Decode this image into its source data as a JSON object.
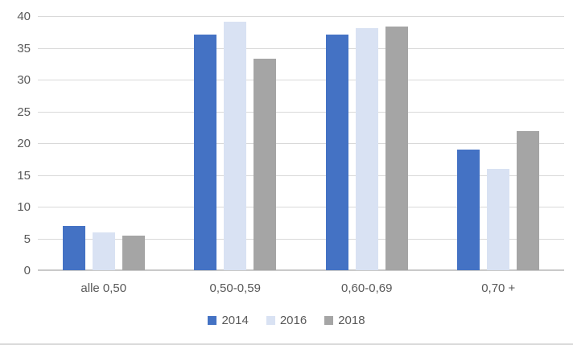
{
  "chart_data": {
    "type": "bar",
    "title": "",
    "categories": [
      "alle 0,50",
      "0,50-0,59",
      "0,60-0,69",
      "0,70 +"
    ],
    "series": [
      {
        "name": "2014",
        "color": "#4472c4",
        "values": [
          7.0,
          37.1,
          37.1,
          19.0
        ]
      },
      {
        "name": "2016",
        "color": "#d9e2f3",
        "values": [
          6.0,
          39.1,
          38.1,
          16.0
        ]
      },
      {
        "name": "2018",
        "color": "#a5a5a5",
        "values": [
          5.4,
          33.3,
          38.3,
          21.9
        ]
      }
    ],
    "xlabel": "",
    "ylabel": "",
    "ylim": [
      0,
      40
    ],
    "ytick_step": 5,
    "ytick_labels": [
      "0",
      "5",
      "10",
      "15",
      "20",
      "25",
      "30",
      "35",
      "40"
    ],
    "grid": true,
    "legend_position": "bottom",
    "colors": {
      "gridline": "#d9d9d9",
      "axis_line": "#c9c9c9",
      "text": "#595959",
      "background": "#ffffff",
      "page_edge_line": "#d9d9d9"
    }
  }
}
